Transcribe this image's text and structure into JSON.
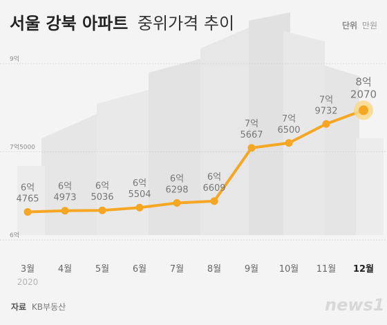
{
  "header": {
    "title_bold": "서울 강북 아파트",
    "title_light": "중위가격 추이",
    "unit_label": "단위",
    "unit_value": "만원"
  },
  "chart_data": {
    "type": "line",
    "title": "서울 강북 아파트 중위가격 추이",
    "unit": "만원",
    "categories": [
      "3월",
      "4월",
      "5월",
      "6월",
      "7월",
      "8월",
      "9월",
      "10월",
      "11월",
      "12월"
    ],
    "year_label": "2020",
    "values": [
      64765,
      64973,
      65036,
      65504,
      66298,
      66609,
      75667,
      76500,
      79732,
      82070
    ],
    "value_labels": [
      [
        "6억",
        "4765"
      ],
      [
        "6억",
        "4973"
      ],
      [
        "6억",
        "5036"
      ],
      [
        "6억",
        "5504"
      ],
      [
        "6억",
        "6298"
      ],
      [
        "6억",
        "6609"
      ],
      [
        "7억",
        "5667"
      ],
      [
        "7억",
        "6500"
      ],
      [
        "7억",
        "9732"
      ],
      [
        "8억",
        "2070"
      ]
    ],
    "y_ticks": [
      {
        "value": 90000,
        "label": "9억"
      },
      {
        "value": 75000,
        "label": "7억5000"
      },
      {
        "value": 60000,
        "label": "6억"
      }
    ],
    "ylim": [
      60000,
      90000
    ],
    "grid": true,
    "line_color": "#f5a623",
    "highlight_color": "#f8d98a"
  },
  "footer": {
    "source_label": "자료",
    "source_value": "KB부동산",
    "logo": "news1"
  }
}
